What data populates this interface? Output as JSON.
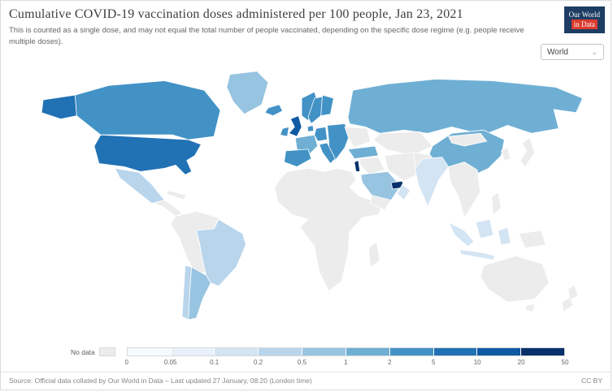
{
  "header": {
    "title": "Cumulative COVID-19 vaccination doses administered per 100 people, Jan 23, 2021",
    "subtitle": "This is counted as a single dose, and may not equal the total number of people vaccinated, depending on the specific dose regime (e.g. people receive multiple doses).",
    "logo": {
      "line1": "Our World",
      "line2": "in Data",
      "bg_color": "#1d3d63",
      "accent_color": "#dc3b2f"
    }
  },
  "controls": {
    "region_selector": {
      "value": "World",
      "chevron": "⌄"
    }
  },
  "chart_data": {
    "type": "choropleth_map",
    "metric": "Cumulative COVID-19 vaccination doses administered per 100 people",
    "date": "Jan 23, 2021",
    "selected_view": "World",
    "legend": {
      "no_data_label": "No data",
      "no_data_color": "#ececec",
      "boundaries": [
        "0",
        "0.05",
        "0.1",
        "0.2",
        "0.5",
        "1",
        "2",
        "5",
        "10",
        "20",
        "50"
      ],
      "bins": [
        "0-0.05",
        "0.05-0.1",
        "0.1-0.2",
        "0.2-0.5",
        "0.5-1",
        "1-2",
        "2-5",
        "5-10",
        "10-20",
        "20-50"
      ],
      "colors": [
        "#f7fbff",
        "#e8f1fa",
        "#d3e4f3",
        "#b9d5ec",
        "#97c4e0",
        "#6fafd4",
        "#4292c6",
        "#2171b5",
        "#0f5aa3",
        "#08306b"
      ]
    },
    "regions": {
      "united-states": "5-10",
      "canada": "2-5",
      "greenland": "0.5-1",
      "mexico": "0.2-0.5",
      "brazil": "0.2-0.5",
      "argentina": "0.5-1",
      "chile": "0.2-0.5",
      "iceland": "2-5",
      "united-kingdom": "10-20",
      "ireland": "2-5",
      "norway": "2-5",
      "sweden": "2-5",
      "finland": "2-5",
      "denmark": "2-5",
      "france": "1-2",
      "spain": "2-5",
      "germany": "2-5",
      "italy": "2-5",
      "eastern-europe": "2-5",
      "turkey": "1-2",
      "russia": "1-2",
      "china": "1-2",
      "india": "0.1-0.2",
      "saudi-arabia": "0.5-1",
      "united-arab-emirates": "20-50",
      "israel": "20-50",
      "oman": "0.1-0.2",
      "indonesia": "0.1-0.2"
    }
  },
  "footer": {
    "source": "Source: Official data collated by Our World in Data – Last updated 27 January, 08:20 (London time)",
    "license": "CC BY"
  }
}
